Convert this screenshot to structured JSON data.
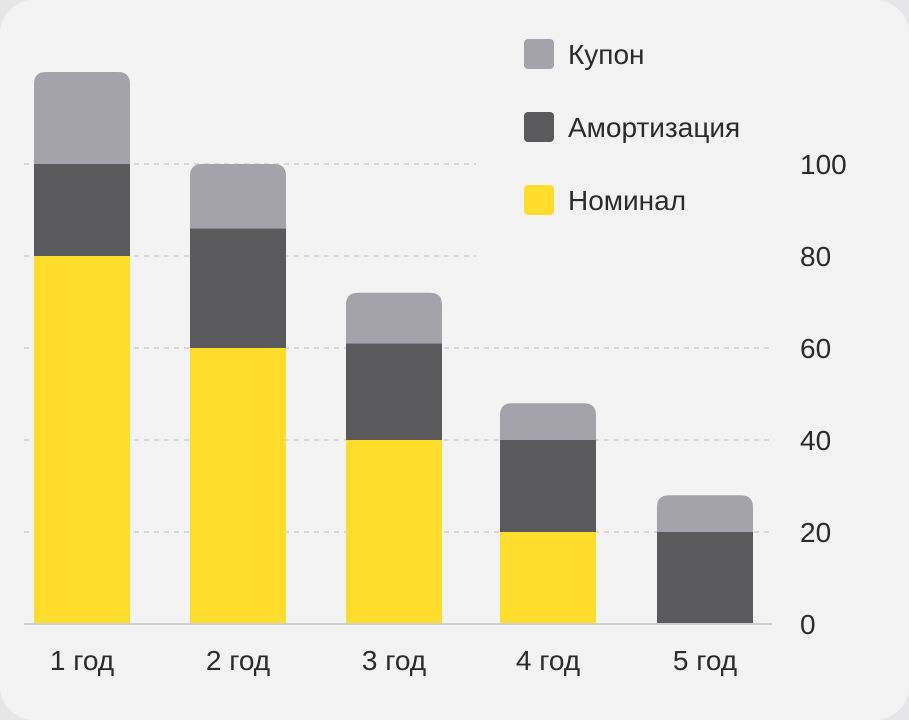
{
  "chart_data": {
    "type": "bar",
    "stacked": true,
    "categories": [
      "1 год",
      "2 год",
      "3 год",
      "4 год",
      "5 год"
    ],
    "series": [
      {
        "name": "Номинал",
        "color": "#ffdd2d",
        "values": [
          80,
          60,
          40,
          20,
          0
        ]
      },
      {
        "name": "Амортизация",
        "color": "#5a5a5c",
        "values": [
          20,
          26,
          21,
          20,
          20
        ]
      },
      {
        "name": "Купон",
        "color": "#a4a3ac",
        "values": [
          20,
          14,
          11,
          8,
          8
        ]
      }
    ],
    "yticks": [
      "0",
      "20",
      "40",
      "60",
      "80",
      "100"
    ],
    "ylim": [
      0,
      120
    ],
    "yaxis_position": "right",
    "grid": true,
    "legend_position": "top-right",
    "legend": [
      {
        "name": "Купон",
        "color": "#a4a3ac"
      },
      {
        "name": "Амортизация",
        "color": "#5a5a5c"
      },
      {
        "name": "Номинал",
        "color": "#ffdd2d"
      }
    ]
  }
}
